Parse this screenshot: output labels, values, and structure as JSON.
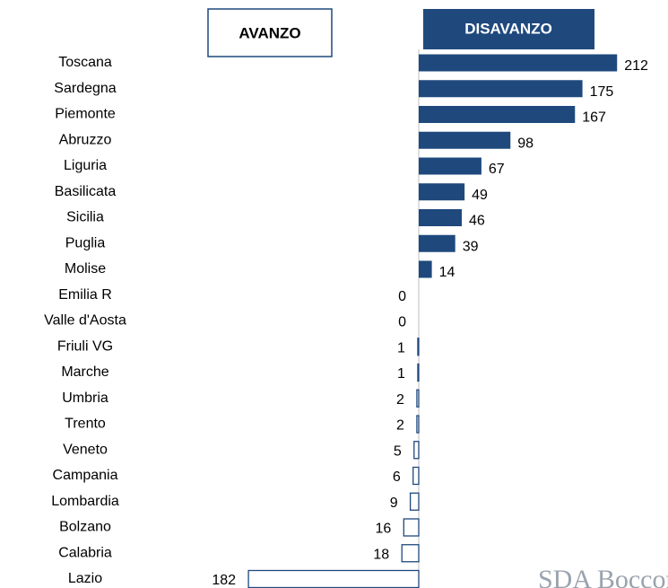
{
  "chart_data": {
    "type": "diverging-bar",
    "categories": [
      "Toscana",
      "Sardegna",
      "Piemonte",
      "Abruzzo",
      "Liguria",
      "Basilicata",
      "Sicilia",
      "Puglia",
      "Molise",
      "Emilia R",
      "Valle d'Aosta",
      "Friuli VG",
      "Marche",
      "Umbria",
      "Trento",
      "Veneto",
      "Campania",
      "Lombardia",
      "Bolzano",
      "Calabria",
      "Lazio"
    ],
    "series": [
      {
        "name": "AVANZO",
        "color": "#1f497d",
        "values": [
          null,
          null,
          null,
          null,
          null,
          null,
          null,
          null,
          null,
          0,
          0,
          1,
          1,
          2,
          2,
          5,
          6,
          9,
          16,
          18,
          182
        ]
      },
      {
        "name": "DISAVANZO",
        "color": "#1f497d",
        "values": [
          212,
          175,
          167,
          98,
          67,
          49,
          46,
          39,
          14,
          null,
          null,
          null,
          null,
          null,
          null,
          null,
          null,
          null,
          null,
          null,
          null
        ]
      }
    ],
    "xlim": [
      0,
      230
    ],
    "logo": "SDA Bocconi"
  }
}
